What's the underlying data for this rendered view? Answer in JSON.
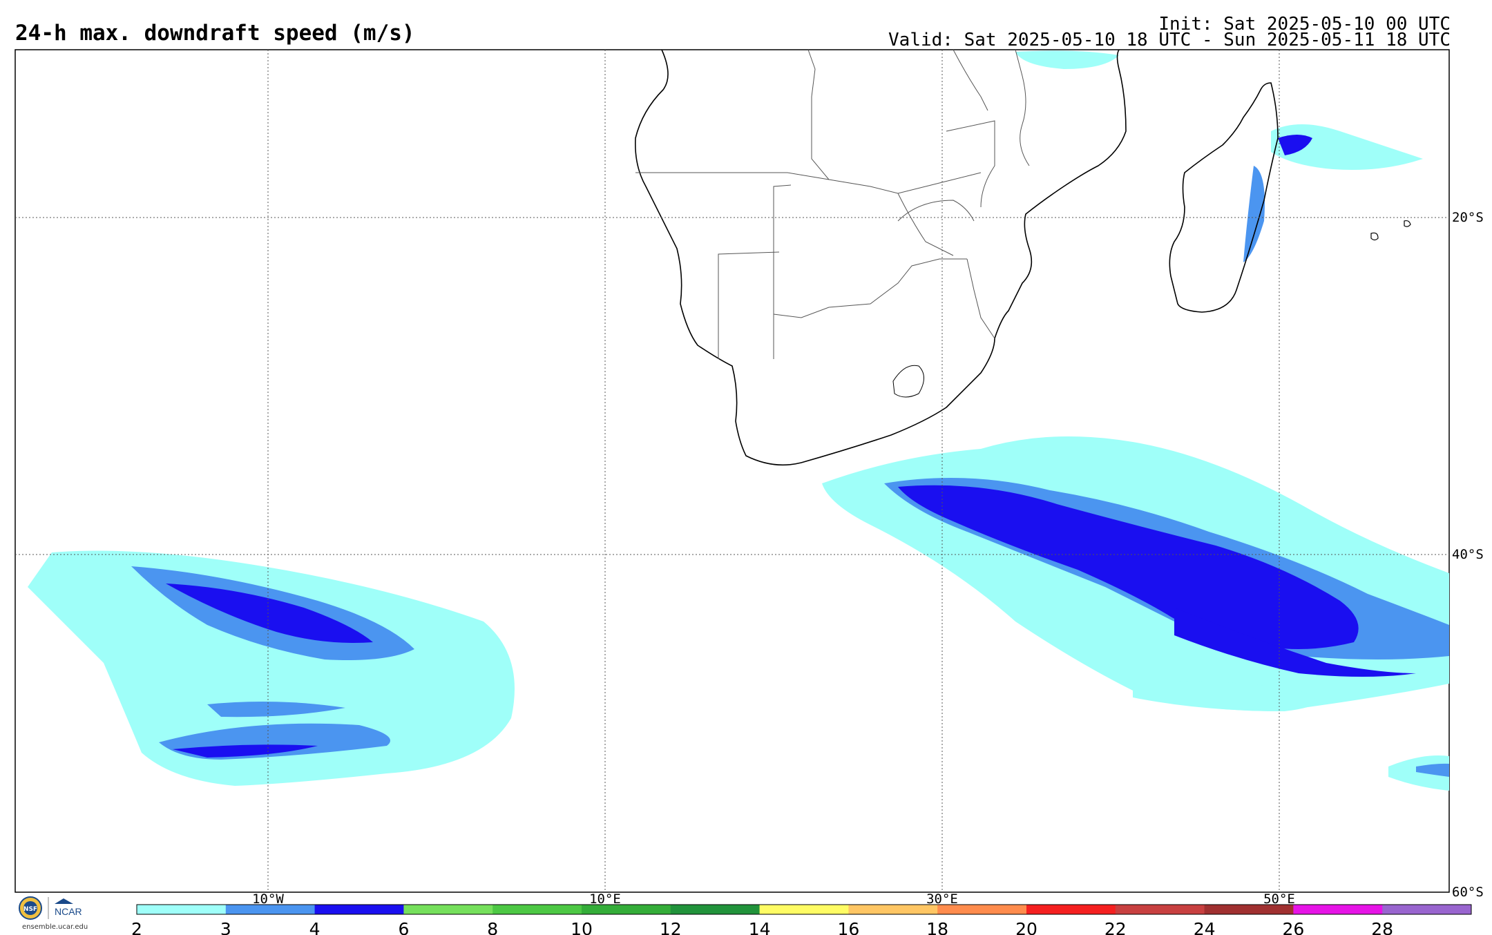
{
  "header": {
    "title": "24-h max. downdraft speed (m/s)",
    "init": "Init: Sat 2025-05-10 00 UTC",
    "valid": "Valid: Sat 2025-05-10 18 UTC - Sun 2025-05-11 18 UTC"
  },
  "map": {
    "lon_labels": [
      "10°W",
      "10°E",
      "30°E",
      "50°E"
    ],
    "lat_labels": [
      "20°S",
      "40°S",
      "60°S"
    ],
    "projection_extent": {
      "lon": [
        -25,
        60
      ],
      "lat": [
        -60,
        -10
      ]
    }
  },
  "colorbar": {
    "ticks": [
      "2",
      "3",
      "4",
      "6",
      "8",
      "10",
      "12",
      "14",
      "16",
      "18",
      "20",
      "22",
      "24",
      "26",
      "28"
    ],
    "colors": [
      "#9ffff9",
      "#4b95f0",
      "#1a0ff0",
      "#76e05c",
      "#4dc844",
      "#34ad39",
      "#21933b",
      "#fffc64",
      "#ffc664",
      "#ff8c4d",
      "#f52020",
      "#c84040",
      "#a03030",
      "#e614e6",
      "#9965cf"
    ]
  },
  "logo": {
    "nsf": "NSF",
    "ncar": "NCAR",
    "url": "ensemble.ucar.edu"
  }
}
